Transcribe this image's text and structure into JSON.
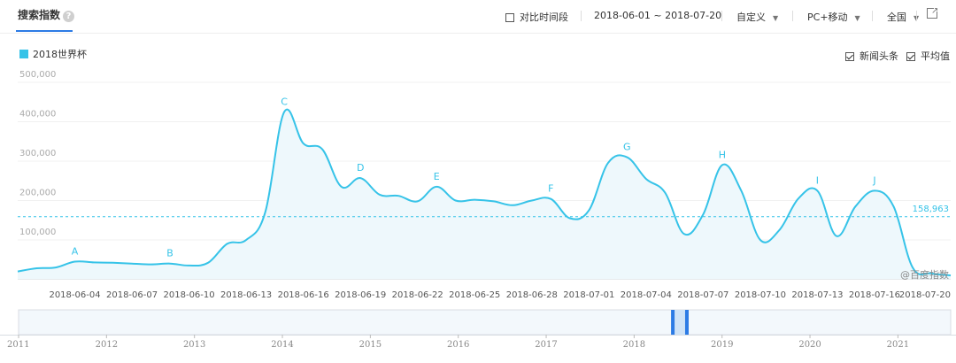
{
  "header": {
    "title": "搜索指数",
    "compare_label": "对比时间段",
    "date_range": "2018-06-01 ~ 2018-07-20",
    "custom_label": "自定义",
    "device_label": "PC+移动",
    "region_label": "全国"
  },
  "toggles": {
    "news_label": "新闻头条",
    "average_label": "平均值"
  },
  "watermark": "@百度指数",
  "colors": {
    "series": "#36c3e8",
    "fill": "#eef8fc",
    "accent": "#2c7be5"
  },
  "icons": {
    "help": "question-circle-icon",
    "external": "external-link-icon"
  },
  "help_glyph": "?",
  "chart_data": {
    "type": "area",
    "title": "",
    "xlabel": "",
    "ylabel": "",
    "ylim": [
      0,
      500000
    ],
    "yticks": [
      100000,
      200000,
      300000,
      400000,
      500000
    ],
    "ytick_labels": [
      "100,000",
      "200,000",
      "300,000",
      "400,000",
      "500,000"
    ],
    "grid": true,
    "legend": "top-left",
    "x_tick_labels": [
      "2018-06-04",
      "2018-06-07",
      "2018-06-10",
      "2018-06-13",
      "2018-06-16",
      "2018-06-19",
      "2018-06-22",
      "2018-06-25",
      "2018-06-28",
      "2018-07-01",
      "2018-07-04",
      "2018-07-07",
      "2018-07-10",
      "2018-07-13",
      "2018-07-16",
      "2018-07-20"
    ],
    "x_tick_indices": [
      3,
      6,
      9,
      12,
      15,
      18,
      21,
      24,
      27,
      30,
      33,
      36,
      39,
      42,
      45,
      49
    ],
    "series": [
      {
        "name": "2018世界杯",
        "x": [
          "2018-06-01",
          "2018-06-02",
          "2018-06-03",
          "2018-06-04",
          "2018-06-05",
          "2018-06-06",
          "2018-06-07",
          "2018-06-08",
          "2018-06-09",
          "2018-06-10",
          "2018-06-11",
          "2018-06-12",
          "2018-06-13",
          "2018-06-14",
          "2018-06-15",
          "2018-06-16",
          "2018-06-17",
          "2018-06-18",
          "2018-06-19",
          "2018-06-20",
          "2018-06-21",
          "2018-06-22",
          "2018-06-23",
          "2018-06-24",
          "2018-06-25",
          "2018-06-26",
          "2018-06-27",
          "2018-06-28",
          "2018-06-29",
          "2018-06-30",
          "2018-07-01",
          "2018-07-02",
          "2018-07-03",
          "2018-07-04",
          "2018-07-05",
          "2018-07-06",
          "2018-07-07",
          "2018-07-08",
          "2018-07-09",
          "2018-07-10",
          "2018-07-11",
          "2018-07-12",
          "2018-07-13",
          "2018-07-14",
          "2018-07-15",
          "2018-07-16",
          "2018-07-17",
          "2018-07-18",
          "2018-07-19",
          "2018-07-20"
        ],
        "values": [
          20000,
          28000,
          30000,
          45000,
          43000,
          42000,
          40000,
          38000,
          40000,
          35000,
          42000,
          90000,
          100000,
          170000,
          425000,
          345000,
          330000,
          235000,
          257000,
          215000,
          212000,
          198000,
          235000,
          200000,
          202000,
          198000,
          188000,
          200000,
          204000,
          155000,
          175000,
          295000,
          310000,
          255000,
          220000,
          115000,
          165000,
          290000,
          225000,
          100000,
          125000,
          205000,
          225000,
          110000,
          185000,
          225000,
          185000,
          30000,
          15000,
          10000
        ]
      }
    ],
    "average": {
      "value": 158963,
      "label": "158,963"
    },
    "annotations": [
      {
        "letter": "A",
        "index": 3
      },
      {
        "letter": "B",
        "index": 8
      },
      {
        "letter": "C",
        "index": 14
      },
      {
        "letter": "D",
        "index": 18
      },
      {
        "letter": "E",
        "index": 22
      },
      {
        "letter": "F",
        "index": 28
      },
      {
        "letter": "G",
        "index": 32
      },
      {
        "letter": "H",
        "index": 37
      },
      {
        "letter": "I",
        "index": 42
      },
      {
        "letter": "J",
        "index": 45
      }
    ],
    "navigator": {
      "year_labels": [
        "2011",
        "2012",
        "2013",
        "2014",
        "2015",
        "2016",
        "2017",
        "2018",
        "2019",
        "2020",
        "2021"
      ],
      "start_year": 2011,
      "end_year": 2021.6,
      "selected_years": [
        2018.44,
        2018.6
      ]
    }
  }
}
